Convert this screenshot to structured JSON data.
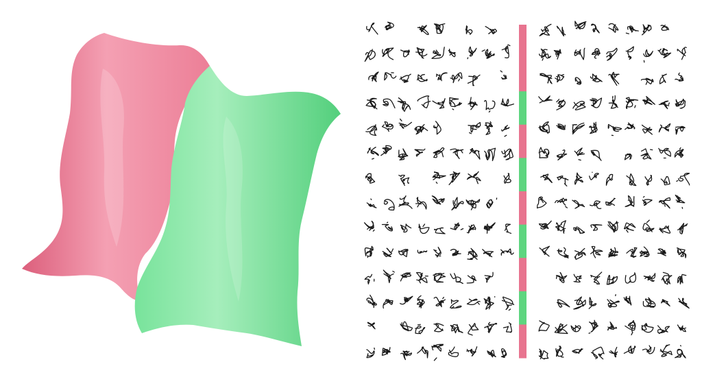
{
  "image": {
    "description_free": true
  },
  "colors": {
    "background": "#ffffff",
    "red_sheet_light": "#f4a0b3",
    "red_sheet_mid": "#ec7f97",
    "red_sheet_dark": "#dc5f7c",
    "green_sheet_light": "#a6eebc",
    "green_sheet_mid": "#78e39b",
    "green_sheet_dark": "#53cf7c",
    "bar_red": "#e8748f",
    "bar_green": "#5ed57f",
    "glyph_ink": "#1a1a1a"
  },
  "divider_bar": {
    "segments": [
      "red",
      "red",
      "green",
      "red",
      "green",
      "red",
      "green",
      "red",
      "green",
      "red"
    ]
  },
  "glyph_grid": {
    "rows": 14,
    "left_columns": 9,
    "right_columns": 9,
    "seed": 7
  }
}
